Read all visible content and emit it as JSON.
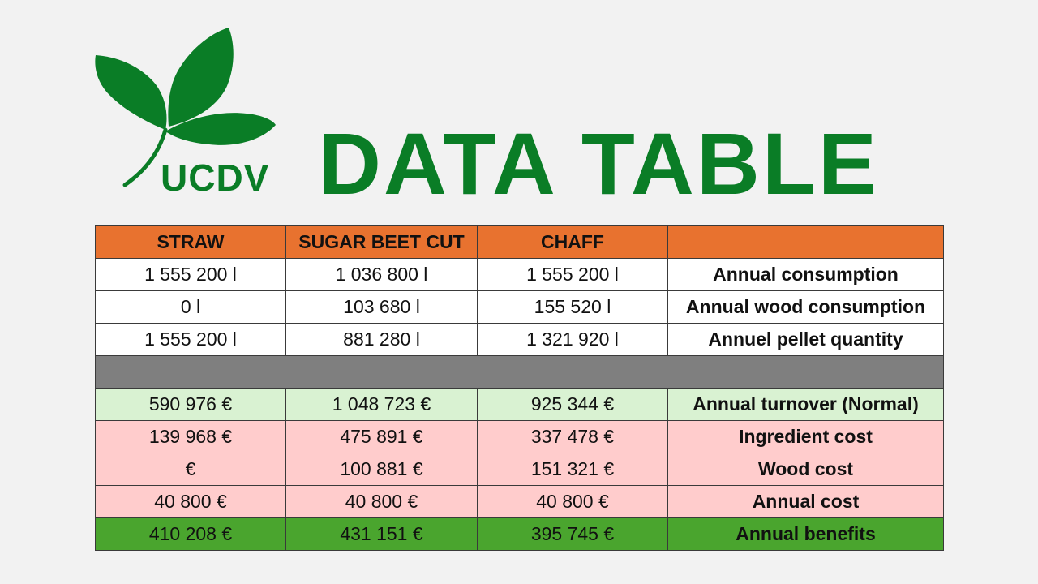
{
  "logo": {
    "text": "UCDV",
    "icon": "three-leaf-sprout-icon",
    "color": "#0a7d26"
  },
  "title": "DATA TABLE",
  "colors": {
    "header": "#e8722f",
    "separator": "#7f7f7f",
    "turnover": "#d9f2d2",
    "cost": "#ffcccc",
    "benefits": "#4aa52e"
  },
  "table": {
    "headers": [
      "STRAW",
      "SUGAR BEET CUT",
      "CHAFF",
      ""
    ],
    "rows": [
      {
        "values": [
          "1 555 200 l",
          "1 036 800 l",
          "1 555 200 l"
        ],
        "label": "Annual consumption"
      },
      {
        "values": [
          "0 l",
          "103 680 l",
          "155 520 l"
        ],
        "label": "Annual wood consumption"
      },
      {
        "values": [
          "1 555 200 l",
          "881 280 l",
          "1 321 920 l"
        ],
        "label": "Annuel pellet quantity"
      },
      {
        "values": [
          "590 976 €",
          "1 048 723 €",
          "925 344 €"
        ],
        "label": "Annual turnover (Normal)"
      },
      {
        "values": [
          "139 968 €",
          "475 891 €",
          "337 478 €"
        ],
        "label": "Ingredient cost"
      },
      {
        "values": [
          "€",
          "100 881 €",
          "151 321 €"
        ],
        "label": "Wood cost"
      },
      {
        "values": [
          "40 800 €",
          "40 800 €",
          "40 800 €"
        ],
        "label": "Annual cost"
      },
      {
        "values": [
          "410 208 €",
          "431 151 €",
          "395 745 €"
        ],
        "label": "Annual benefits"
      }
    ]
  }
}
